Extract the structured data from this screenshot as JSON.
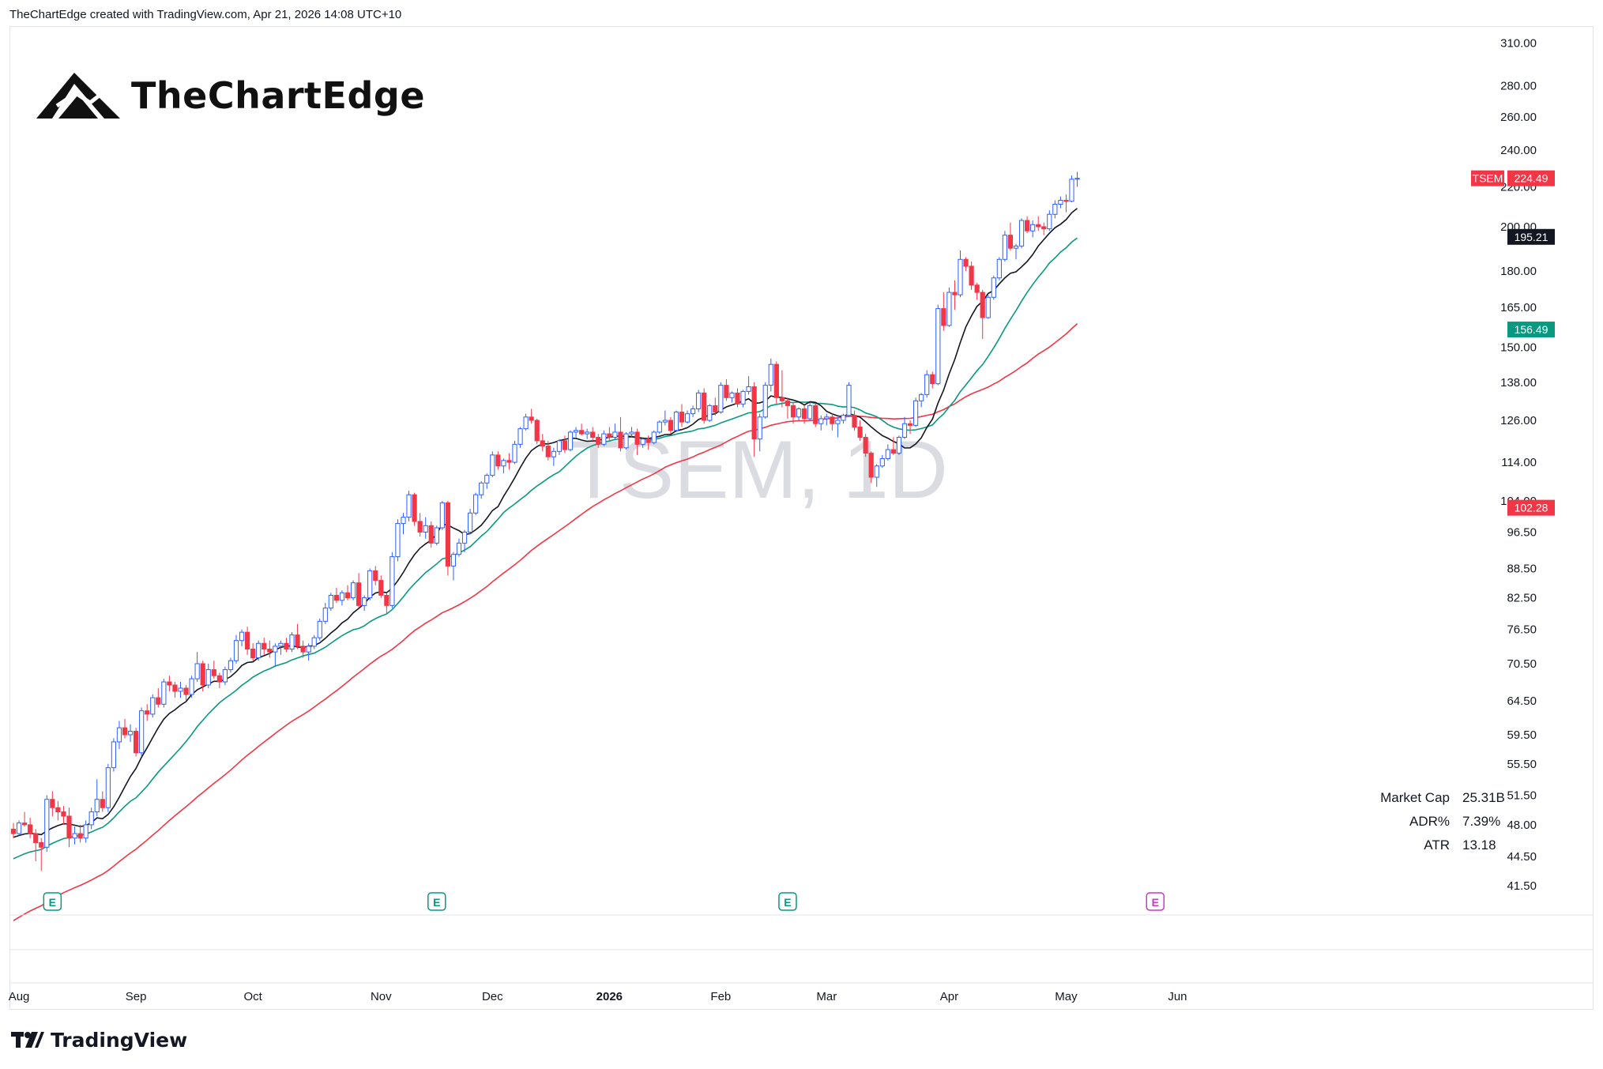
{
  "header": {
    "attribution": "TheChartEdge created with TradingView.com, Apr 21, 2026 14:08 UTC+10"
  },
  "logo": {
    "text": "TheChartEdge"
  },
  "footer": {
    "brand": "TradingView"
  },
  "watermark": "TSEM, 1D",
  "stats": [
    {
      "label": "Market Cap",
      "value": "25.31B"
    },
    {
      "label": "ADR%",
      "value": "7.39%"
    },
    {
      "label": "ATR",
      "value": "13.18"
    }
  ],
  "colors": {
    "up": "#2962ff",
    "down": "#f23645",
    "sma_fast": "#131722",
    "sma_mid": "#089981",
    "sma_slow": "#f23645",
    "earnings_default": "#089981",
    "earnings_upcoming": "#c938c9"
  },
  "chart_data": {
    "type": "candlestick",
    "symbol": "TSEM",
    "interval": "1D",
    "y_scale": "log",
    "ylim": [
      40.5,
      315
    ],
    "y_ticks": [
      "310.00",
      "280.00",
      "260.00",
      "240.00",
      "220.00",
      "200.00",
      "180.00",
      "165.00",
      "150.00",
      "138.00",
      "126.00",
      "114.00",
      "104.00",
      "96.50",
      "88.50",
      "82.50",
      "76.50",
      "70.50",
      "64.50",
      "59.50",
      "55.50",
      "51.50",
      "48.00",
      "44.50",
      "41.50"
    ],
    "x_labels": [
      {
        "label": "Aug",
        "index": 1
      },
      {
        "label": "Sep",
        "index": 22
      },
      {
        "label": "Oct",
        "index": 43
      },
      {
        "label": "Nov",
        "index": 66
      },
      {
        "label": "Dec",
        "index": 86
      },
      {
        "label": "2026",
        "index": 107
      },
      {
        "label": "Feb",
        "index": 127
      },
      {
        "label": "Mar",
        "index": 146
      },
      {
        "label": "Apr",
        "index": 168
      },
      {
        "label": "May",
        "index": 189
      },
      {
        "label": "Jun",
        "index": 209
      }
    ],
    "price_labels": [
      {
        "text": "TSEM",
        "value": "224.49",
        "price": 224.49,
        "color": "#f23645",
        "ticker": true
      },
      {
        "text": "",
        "value": "195.21",
        "price": 195.21,
        "color": "#131722"
      },
      {
        "text": "",
        "value": "156.49",
        "price": 156.49,
        "color": "#089981"
      },
      {
        "text": "",
        "value": "102.28",
        "price": 102.28,
        "color": "#f23645"
      }
    ],
    "earnings_markers": [
      {
        "index": 7,
        "label": "E",
        "upcoming": false
      },
      {
        "index": 76,
        "label": "E",
        "upcoming": false
      },
      {
        "index": 139,
        "label": "E",
        "upcoming": false
      },
      {
        "index": 205,
        "label": "E",
        "upcoming": true
      }
    ],
    "candles": [
      [
        47.5,
        48.2,
        46.5,
        47.0
      ],
      [
        47.0,
        48.5,
        46.8,
        48.2
      ],
      [
        48.2,
        49.5,
        47.8,
        48.0
      ],
      [
        48.0,
        48.8,
        46.5,
        47.0
      ],
      [
        47.0,
        47.5,
        44.0,
        46.0
      ],
      [
        46.0,
        46.5,
        43.0,
        45.5
      ],
      [
        45.5,
        51.5,
        45.0,
        51.0
      ],
      [
        51.0,
        52.0,
        49.0,
        50.0
      ],
      [
        50.0,
        50.8,
        48.5,
        49.5
      ],
      [
        49.5,
        50.2,
        48.0,
        49.0
      ],
      [
        49.0,
        50.0,
        45.5,
        46.5
      ],
      [
        46.5,
        47.8,
        45.8,
        47.0
      ],
      [
        47.0,
        48.0,
        46.0,
        46.5
      ],
      [
        46.5,
        48.5,
        46.0,
        48.0
      ],
      [
        48.0,
        50.0,
        47.5,
        49.5
      ],
      [
        49.5,
        53.5,
        49.0,
        51.0
      ],
      [
        51.0,
        52.0,
        49.5,
        50.0
      ],
      [
        50.0,
        55.5,
        49.5,
        55.0
      ],
      [
        55.0,
        59.0,
        54.5,
        58.5
      ],
      [
        58.5,
        61.5,
        57.5,
        60.5
      ],
      [
        60.5,
        61.8,
        59.0,
        59.5
      ],
      [
        59.5,
        61.0,
        58.5,
        60.0
      ],
      [
        60.0,
        60.5,
        56.5,
        57.0
      ],
      [
        57.0,
        63.5,
        56.5,
        63.0
      ],
      [
        63.0,
        64.0,
        61.5,
        62.5
      ],
      [
        62.5,
        65.5,
        62.0,
        65.0
      ],
      [
        65.0,
        66.5,
        63.5,
        64.0
      ],
      [
        64.0,
        68.0,
        63.5,
        67.5
      ],
      [
        67.5,
        68.5,
        66.0,
        67.0
      ],
      [
        67.0,
        67.5,
        65.0,
        66.0
      ],
      [
        66.0,
        67.5,
        65.0,
        66.5
      ],
      [
        66.5,
        67.0,
        64.5,
        65.5
      ],
      [
        65.5,
        68.5,
        65.0,
        68.0
      ],
      [
        68.0,
        72.5,
        67.5,
        70.5
      ],
      [
        70.5,
        71.0,
        66.0,
        67.0
      ],
      [
        67.0,
        70.5,
        66.5,
        69.5
      ],
      [
        69.5,
        71.0,
        68.0,
        68.5
      ],
      [
        68.5,
        69.0,
        66.5,
        67.5
      ],
      [
        67.5,
        70.0,
        67.0,
        69.5
      ],
      [
        69.5,
        71.5,
        69.0,
        71.0
      ],
      [
        71.0,
        75.5,
        70.5,
        74.5
      ],
      [
        74.5,
        76.5,
        73.5,
        76.0
      ],
      [
        76.0,
        77.0,
        72.0,
        73.0
      ],
      [
        73.0,
        74.0,
        71.0,
        71.5
      ],
      [
        71.5,
        74.5,
        71.0,
        74.0
      ],
      [
        74.0,
        75.0,
        72.0,
        73.0
      ],
      [
        73.0,
        74.5,
        71.5,
        72.5
      ],
      [
        72.5,
        74.0,
        70.0,
        73.5
      ],
      [
        73.5,
        74.5,
        72.0,
        74.0
      ],
      [
        74.0,
        75.0,
        72.5,
        73.0
      ],
      [
        73.0,
        76.0,
        72.5,
        75.5
      ],
      [
        75.5,
        77.5,
        73.0,
        73.5
      ],
      [
        73.5,
        74.5,
        71.5,
        72.5
      ],
      [
        72.5,
        74.0,
        71.0,
        73.5
      ],
      [
        73.5,
        75.5,
        73.0,
        75.0
      ],
      [
        75.0,
        78.5,
        74.5,
        78.0
      ],
      [
        78.0,
        81.5,
        77.5,
        80.5
      ],
      [
        80.5,
        83.5,
        80.0,
        83.0
      ],
      [
        83.0,
        84.5,
        81.5,
        82.0
      ],
      [
        82.0,
        84.0,
        81.0,
        83.5
      ],
      [
        83.5,
        85.0,
        82.0,
        82.5
      ],
      [
        82.5,
        86.0,
        82.0,
        85.5
      ],
      [
        85.5,
        87.5,
        80.5,
        81.0
      ],
      [
        81.0,
        83.0,
        80.0,
        82.5
      ],
      [
        82.5,
        88.5,
        82.0,
        88.0
      ],
      [
        88.0,
        89.0,
        85.0,
        86.0
      ],
      [
        86.0,
        87.0,
        82.5,
        83.0
      ],
      [
        83.0,
        83.5,
        79.5,
        81.0
      ],
      [
        81.0,
        92.0,
        80.5,
        91.0
      ],
      [
        91.0,
        99.5,
        90.0,
        98.5
      ],
      [
        98.5,
        101.0,
        96.0,
        100.0
      ],
      [
        100.0,
        106.5,
        99.0,
        105.5
      ],
      [
        105.5,
        106.0,
        98.0,
        99.0
      ],
      [
        99.0,
        101.0,
        95.5,
        96.5
      ],
      [
        96.5,
        100.0,
        95.0,
        98.0
      ],
      [
        98.0,
        99.0,
        93.0,
        94.0
      ],
      [
        94.0,
        98.0,
        93.5,
        97.5
      ],
      [
        97.5,
        104.0,
        97.0,
        103.5
      ],
      [
        103.5,
        104.0,
        87.0,
        89.0
      ],
      [
        89.0,
        92.0,
        86.0,
        91.5
      ],
      [
        91.5,
        95.0,
        91.0,
        94.0
      ],
      [
        94.0,
        97.0,
        92.0,
        96.5
      ],
      [
        96.5,
        102.0,
        96.0,
        101.0
      ],
      [
        101.0,
        106.0,
        100.5,
        105.5
      ],
      [
        105.5,
        109.0,
        104.5,
        108.5
      ],
      [
        108.5,
        111.0,
        107.0,
        110.5
      ],
      [
        110.5,
        117.0,
        110.0,
        116.0
      ],
      [
        116.0,
        117.0,
        112.0,
        113.0
      ],
      [
        113.0,
        115.0,
        111.0,
        114.5
      ],
      [
        114.5,
        116.5,
        112.0,
        114.0
      ],
      [
        114.0,
        120.0,
        113.5,
        119.0
      ],
      [
        119.0,
        124.0,
        118.0,
        123.5
      ],
      [
        123.5,
        128.0,
        123.0,
        127.0
      ],
      [
        127.0,
        129.5,
        125.0,
        126.0
      ],
      [
        126.0,
        126.5,
        119.0,
        120.0
      ],
      [
        120.0,
        122.0,
        117.0,
        118.5
      ],
      [
        118.5,
        120.0,
        114.5,
        115.5
      ],
      [
        115.5,
        118.0,
        113.0,
        117.0
      ],
      [
        117.0,
        120.5,
        116.0,
        120.0
      ],
      [
        120.0,
        121.5,
        116.5,
        117.5
      ],
      [
        117.5,
        123.0,
        117.0,
        122.5
      ],
      [
        122.5,
        124.0,
        121.0,
        123.0
      ],
      [
        123.0,
        125.0,
        121.5,
        122.0
      ],
      [
        122.0,
        123.5,
        120.5,
        122.5
      ],
      [
        122.5,
        124.0,
        120.0,
        121.0
      ],
      [
        121.0,
        122.0,
        118.0,
        119.0
      ],
      [
        119.0,
        123.0,
        118.5,
        122.0
      ],
      [
        122.0,
        124.0,
        120.0,
        121.0
      ],
      [
        121.0,
        125.0,
        120.5,
        122.5
      ],
      [
        122.5,
        127.0,
        117.0,
        118.0
      ],
      [
        118.0,
        122.5,
        117.5,
        122.0
      ],
      [
        122.0,
        124.0,
        121.0,
        122.5
      ],
      [
        122.5,
        123.5,
        116.0,
        119.0
      ],
      [
        119.0,
        121.0,
        118.0,
        120.5
      ],
      [
        120.5,
        121.5,
        117.5,
        119.5
      ],
      [
        119.5,
        123.0,
        119.0,
        122.5
      ],
      [
        122.5,
        126.0,
        122.0,
        125.5
      ],
      [
        125.5,
        129.0,
        124.5,
        126.0
      ],
      [
        126.0,
        127.0,
        122.0,
        123.0
      ],
      [
        123.0,
        129.0,
        122.5,
        128.5
      ],
      [
        128.5,
        131.0,
        124.0,
        125.5
      ],
      [
        125.5,
        129.0,
        125.0,
        128.0
      ],
      [
        128.0,
        130.5,
        127.0,
        129.5
      ],
      [
        129.5,
        135.5,
        128.5,
        134.5
      ],
      [
        134.5,
        136.0,
        125.0,
        126.0
      ],
      [
        126.0,
        131.0,
        125.5,
        130.5
      ],
      [
        130.5,
        133.0,
        127.5,
        128.5
      ],
      [
        128.5,
        138.0,
        128.0,
        137.0
      ],
      [
        137.0,
        139.0,
        132.0,
        133.0
      ],
      [
        133.0,
        135.0,
        131.5,
        134.5
      ],
      [
        134.5,
        136.0,
        130.0,
        131.0
      ],
      [
        131.0,
        135.5,
        130.0,
        135.0
      ],
      [
        135.0,
        140.0,
        134.0,
        136.5
      ],
      [
        136.5,
        138.0,
        115.5,
        120.5
      ],
      [
        120.5,
        128.0,
        117.0,
        127.0
      ],
      [
        127.0,
        138.0,
        126.5,
        137.0
      ],
      [
        137.0,
        146.0,
        135.0,
        144.0
      ],
      [
        144.0,
        145.0,
        131.0,
        133.0
      ],
      [
        133.0,
        142.0,
        130.0,
        132.0
      ],
      [
        132.0,
        133.0,
        126.5,
        130.5
      ],
      [
        130.5,
        131.5,
        125.0,
        127.0
      ],
      [
        127.0,
        130.0,
        126.0,
        129.5
      ],
      [
        129.5,
        130.5,
        125.0,
        126.5
      ],
      [
        126.5,
        131.5,
        126.0,
        130.5
      ],
      [
        130.5,
        131.0,
        124.0,
        125.0
      ],
      [
        125.0,
        127.5,
        123.0,
        126.5
      ],
      [
        126.5,
        128.0,
        124.5,
        127.0
      ],
      [
        127.0,
        128.0,
        123.0,
        125.0
      ],
      [
        125.0,
        127.0,
        121.0,
        126.0
      ],
      [
        126.0,
        128.0,
        125.0,
        127.5
      ],
      [
        127.5,
        138.0,
        127.0,
        137.0
      ],
      [
        127.5,
        129.0,
        123.0,
        124.0
      ],
      [
        124.0,
        126.0,
        120.0,
        121.0
      ],
      [
        121.0,
        122.0,
        115.5,
        116.5
      ],
      [
        116.5,
        117.0,
        108.5,
        110.0
      ],
      [
        110.0,
        113.5,
        107.5,
        113.0
      ],
      [
        113.0,
        116.0,
        112.5,
        115.0
      ],
      [
        115.0,
        119.0,
        114.5,
        117.5
      ],
      [
        117.5,
        121.0,
        116.0,
        116.5
      ],
      [
        116.5,
        121.5,
        116.0,
        121.0
      ],
      [
        121.0,
        127.0,
        120.5,
        125.0
      ],
      [
        125.0,
        126.0,
        122.0,
        124.5
      ],
      [
        124.5,
        133.0,
        124.0,
        132.0
      ],
      [
        132.0,
        134.5,
        130.0,
        134.0
      ],
      [
        134.0,
        142.0,
        133.0,
        140.5
      ],
      [
        140.5,
        141.5,
        136.0,
        137.5
      ],
      [
        137.5,
        166.0,
        137.0,
        164.5
      ],
      [
        164.5,
        171.0,
        156.0,
        158.0
      ],
      [
        158.0,
        173.0,
        157.5,
        171.0
      ],
      [
        171.0,
        176.0,
        164.0,
        170.0
      ],
      [
        170.0,
        189.0,
        169.0,
        185.0
      ],
      [
        185.0,
        186.0,
        180.0,
        182.0
      ],
      [
        182.0,
        184.0,
        172.0,
        174.0
      ],
      [
        174.0,
        175.0,
        168.0,
        171.0
      ],
      [
        171.0,
        172.0,
        153.0,
        161.0
      ],
      [
        161.0,
        170.0,
        160.5,
        169.0
      ],
      [
        169.0,
        178.0,
        168.0,
        177.0
      ],
      [
        177.0,
        186.0,
        176.0,
        185.0
      ],
      [
        185.0,
        198.0,
        184.0,
        196.0
      ],
      [
        196.0,
        202.0,
        189.0,
        190.0
      ],
      [
        190.0,
        192.0,
        185.0,
        191.0
      ],
      [
        191.0,
        204.0,
        190.0,
        203.0
      ],
      [
        203.0,
        205.0,
        197.0,
        198.0
      ],
      [
        198.0,
        203.0,
        195.0,
        201.0
      ],
      [
        201.0,
        205.0,
        198.0,
        200.0
      ],
      [
        200.0,
        202.0,
        196.0,
        199.0
      ],
      [
        199.0,
        208.0,
        198.0,
        206.0
      ],
      [
        206.0,
        213.0,
        204.0,
        211.0
      ],
      [
        211.0,
        215.0,
        209.0,
        213.0
      ],
      [
        213.0,
        216.0,
        207.0,
        212.5
      ],
      [
        212.5,
        226.0,
        212.0,
        224.0
      ],
      [
        224.0,
        228.0,
        220.0,
        224.49
      ]
    ]
  }
}
